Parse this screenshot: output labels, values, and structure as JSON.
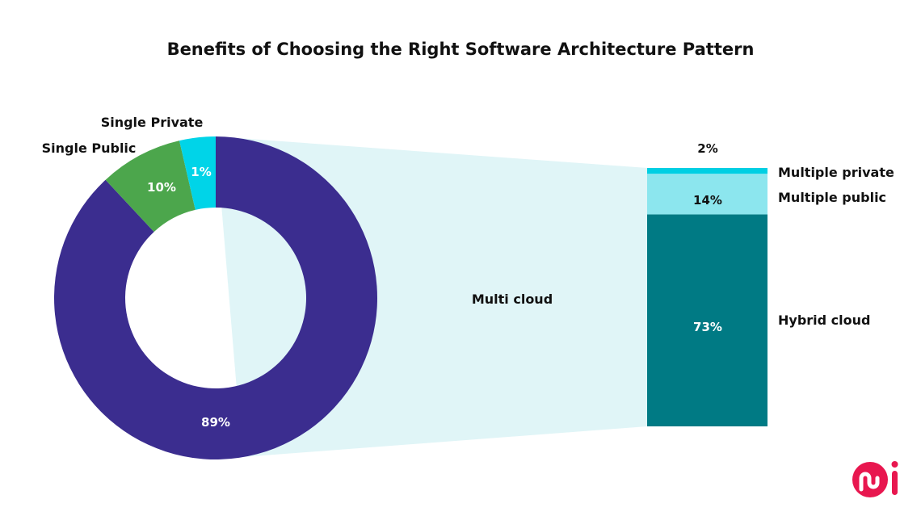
{
  "chart_data": [
    {
      "type": "pie",
      "title": "Benefits of Choosing the Right Software Architecture Pattern",
      "categories": [
        "Multi cloud",
        "Single Public",
        "Single Private"
      ],
      "values": [
        89,
        10,
        1
      ],
      "labels": [
        "89%",
        "10%",
        "1%"
      ],
      "colors": [
        "#3b2d8f",
        "#4ca64c",
        "#00d4e8"
      ]
    },
    {
      "type": "bar",
      "stacked": true,
      "parent": "Multi cloud",
      "categories": [
        "Hybrid cloud",
        "Multiple public",
        "Multiple private"
      ],
      "values": [
        73,
        14,
        2
      ],
      "labels": [
        "73%",
        "14%",
        "2%"
      ],
      "colors": [
        "#007a84",
        "#8ce6ee",
        "#00cfe3"
      ]
    }
  ],
  "funnel_color": "#e0f5f7",
  "logo": {
    "text": "mi",
    "color": "#e8174f"
  }
}
